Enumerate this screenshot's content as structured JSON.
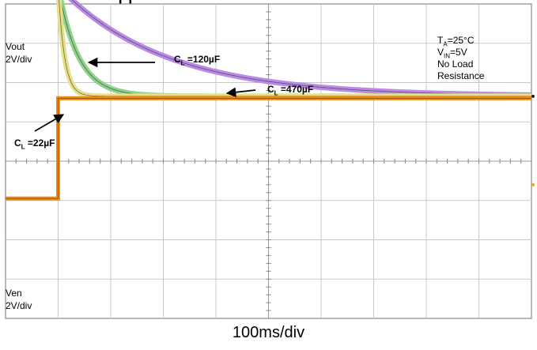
{
  "header_fragment": "(                         )",
  "chart_data": {
    "type": "line",
    "xlabel": "100ms/div",
    "grid": true,
    "divisions": {
      "x": 10,
      "y": 8
    },
    "channels": [
      {
        "name": "Vout",
        "scale": "2V/div",
        "color": "#000000"
      },
      {
        "name": "Ven",
        "scale": "2V/div",
        "color": "#000000"
      }
    ],
    "conditions": [
      "T_A=25°C",
      "V_IN=5V",
      "No Load",
      "Resistance"
    ],
    "cond_parts": [
      {
        "main": "T",
        "sub": "A",
        "rest": "=25°C"
      },
      {
        "main": "V",
        "sub": "IN",
        "rest": "=5V"
      }
    ],
    "cond_plain": [
      "No Load",
      "Resistance"
    ],
    "series": [
      {
        "name": "C_L=22µF",
        "label_main": "C",
        "label_sub": "L",
        "label_rest": " =22µF",
        "color": "#e6e08a",
        "tau_div": 0.12,
        "v_start_div": 4.45,
        "v_end_div": 1.65,
        "t_start_div": 1.0
      },
      {
        "name": "C_L=120µF",
        "label_main": "C",
        "label_sub": "L",
        "label_rest": " =120µF",
        "color": "#8fd28a",
        "tau_div": 0.38,
        "v_start_div": 4.45,
        "v_end_div": 1.65,
        "t_start_div": 1.0
      },
      {
        "name": "C_L=470µF",
        "label_main": "C",
        "label_sub": "L",
        "label_rest": " =470µF",
        "color": "#b98ae6",
        "tau_div": 2.0,
        "v_start_div": 4.45,
        "v_end_div": 1.65,
        "t_start_div": 1.0
      }
    ],
    "enable": {
      "name": "Ven",
      "color": "#ee8a14",
      "t_step_div": 1.0,
      "low_div": -0.95,
      "high_div": 1.6
    }
  }
}
